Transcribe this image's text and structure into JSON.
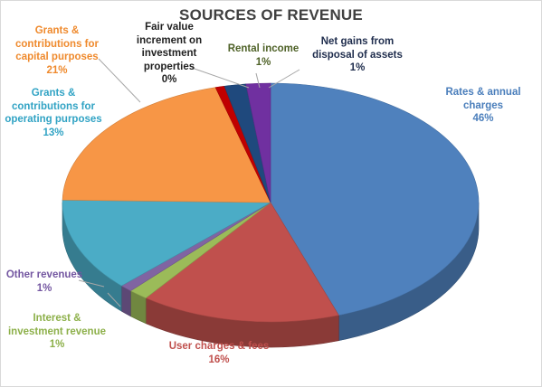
{
  "chart_data": {
    "type": "pie",
    "title": "SOURCES OF REVENUE",
    "slices": [
      {
        "name": "Rates & annual charges",
        "value": 46,
        "label": "46%",
        "color": "#4f81bd"
      },
      {
        "name": "User charges & fees",
        "value": 16,
        "label": "16%",
        "color": "#c0504d"
      },
      {
        "name": "Interest & investment revenue",
        "value": 1,
        "label": "1%",
        "color": "#9bbb59"
      },
      {
        "name": "Other revenues",
        "value": 1,
        "label": "1%",
        "color": "#8064a2"
      },
      {
        "name": "Grants & contributions for operating purposes",
        "value": 13,
        "label": "13%",
        "color": "#4bacc6"
      },
      {
        "name": "Grants & contributions for capital purposes",
        "value": 21,
        "label": "21%",
        "color": "#f79646"
      },
      {
        "name": "Fair value increment on investment properties",
        "value": 0,
        "label": "0%",
        "color": "#c00000"
      },
      {
        "name": "Rental income",
        "value": 1,
        "label": "1%",
        "color": "#1f497d"
      },
      {
        "name": "Net gains from disposal of assets",
        "value": 1,
        "label": "1%",
        "color": "#7030a0"
      }
    ],
    "label_lines": {
      "rates": [
        "Rates & annual",
        "charges"
      ],
      "user": [
        "User charges & fees"
      ],
      "interest": [
        "Interest &",
        "investment revenue"
      ],
      "other": [
        "Other revenues"
      ],
      "grants_op": [
        "Grants &",
        "contributions for",
        "operating purposes"
      ],
      "grants_cap": [
        "Grants &",
        "contributions for",
        "capital purposes"
      ],
      "fair": [
        "Fair value",
        "increment on",
        "investment",
        "properties"
      ],
      "rental": [
        "Rental income"
      ],
      "netgains": [
        "Net gains from",
        "disposal of assets"
      ]
    }
  }
}
